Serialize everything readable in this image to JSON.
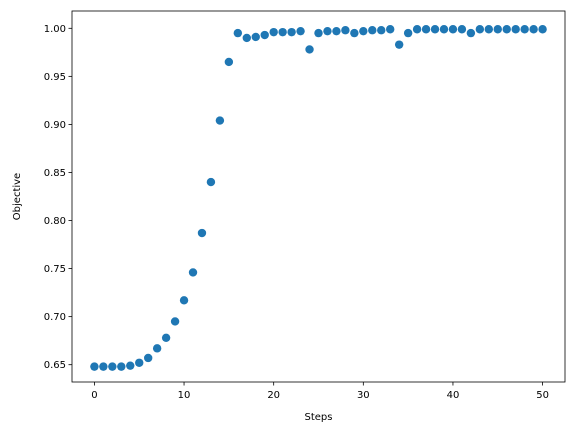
{
  "chart_data": {
    "type": "scatter",
    "title": "",
    "xlabel": "Steps",
    "ylabel": "Objective",
    "xlim": [
      -2.5,
      52.5
    ],
    "ylim": [
      0.632,
      1.018
    ],
    "xticks": [
      0,
      10,
      20,
      30,
      40,
      50
    ],
    "xtick_labels": [
      "0",
      "10",
      "20",
      "30",
      "40",
      "50"
    ],
    "yticks": [
      0.65,
      0.7,
      0.75,
      0.8,
      0.85,
      0.9,
      0.95,
      1.0
    ],
    "ytick_labels": [
      "0.65",
      "0.70",
      "0.75",
      "0.80",
      "0.85",
      "0.90",
      "0.95",
      "1.00"
    ],
    "grid": false,
    "marker_color": "#1f77b4",
    "series": [
      {
        "x": [
          0,
          1,
          2,
          3,
          4,
          5,
          6,
          7,
          8,
          9,
          10,
          11,
          12,
          13,
          14,
          15,
          16,
          17,
          18,
          19,
          20,
          21,
          22,
          23,
          24,
          25,
          26,
          27,
          28,
          29,
          30,
          31,
          32,
          33,
          34,
          35,
          36,
          37,
          38,
          39,
          40,
          41,
          42,
          43,
          44,
          45,
          46,
          47,
          48,
          49,
          50
        ],
        "y": [
          0.648,
          0.648,
          0.648,
          0.648,
          0.649,
          0.652,
          0.657,
          0.667,
          0.678,
          0.695,
          0.717,
          0.746,
          0.787,
          0.84,
          0.904,
          0.965,
          0.995,
          0.99,
          0.991,
          0.993,
          0.996,
          0.996,
          0.996,
          0.997,
          0.978,
          0.995,
          0.997,
          0.997,
          0.998,
          0.995,
          0.997,
          0.998,
          0.998,
          0.999,
          0.983,
          0.995,
          0.999,
          0.999,
          0.999,
          0.999,
          0.999,
          0.999,
          0.995,
          0.999,
          0.999,
          0.999,
          0.999,
          0.999,
          0.999,
          0.999,
          0.999
        ]
      }
    ]
  }
}
